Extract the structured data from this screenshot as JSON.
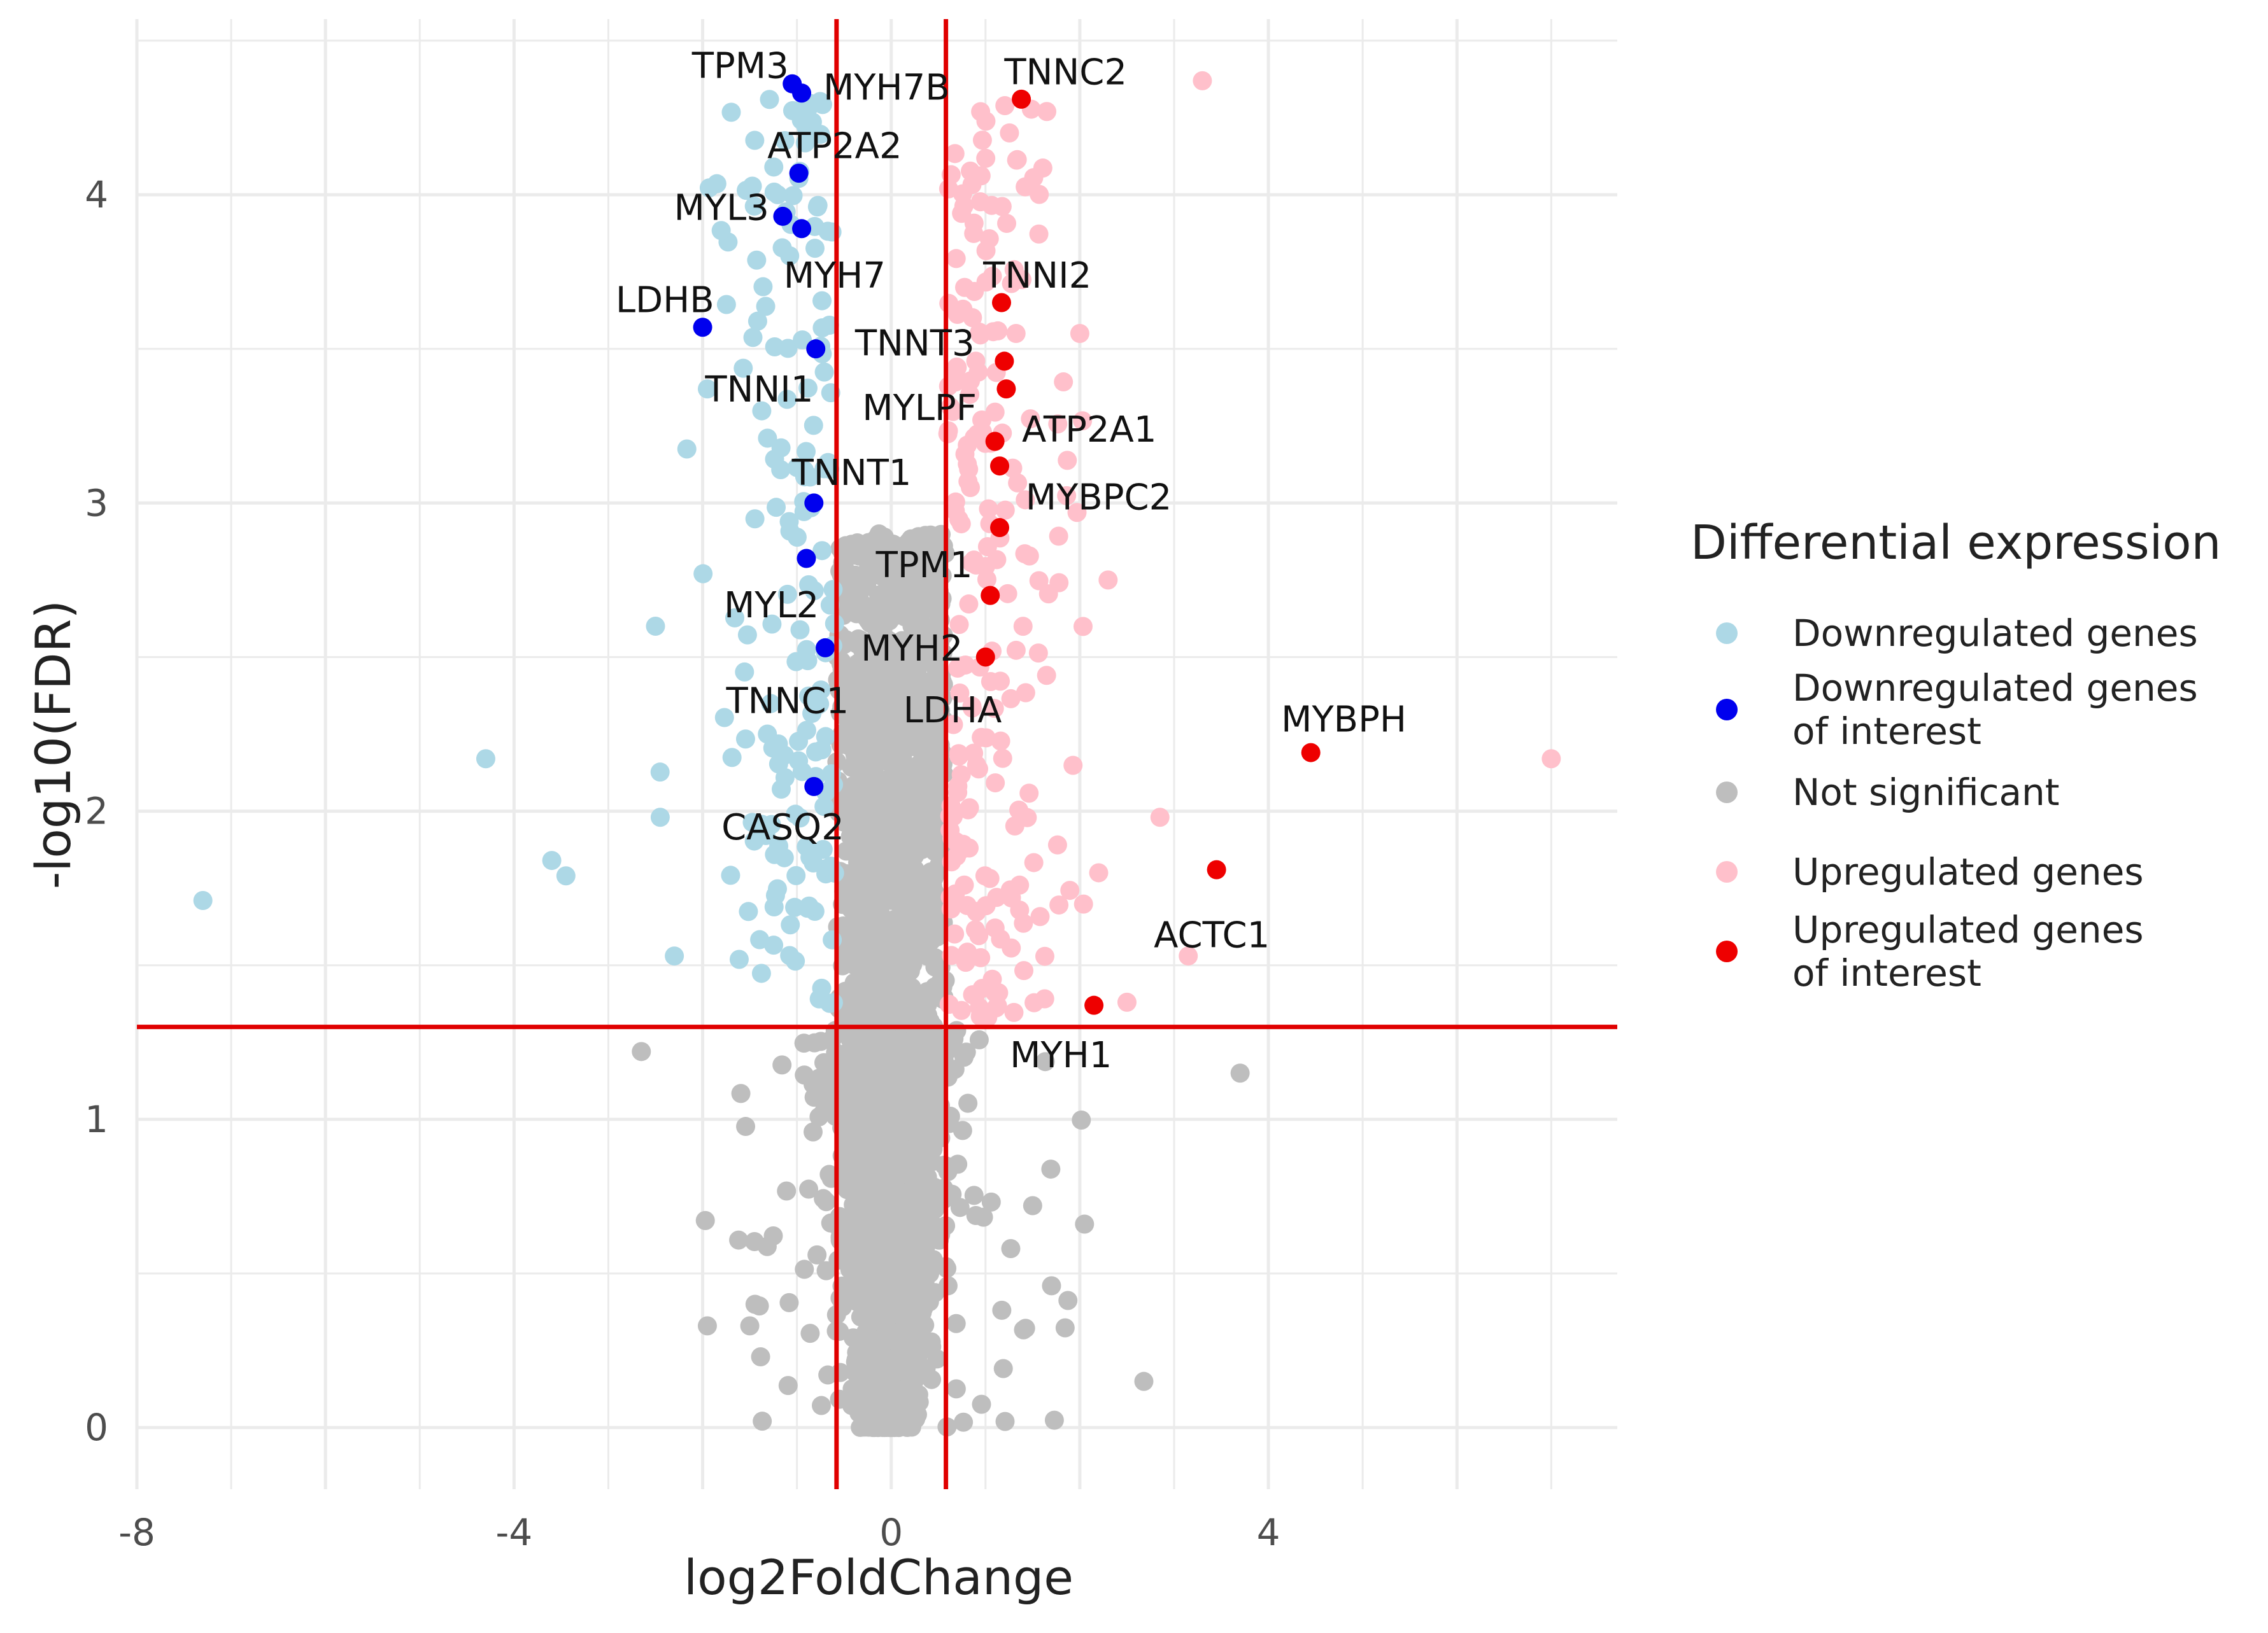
{
  "chart_data": {
    "type": "scatter",
    "title": "",
    "xlabel": "log2FoldChange",
    "ylabel": "-log10(FDR)",
    "xlim": [
      -8,
      7.7
    ],
    "ylim": [
      -0.2,
      4.57
    ],
    "xticks": [
      -8,
      -4,
      0,
      4
    ],
    "xtick_labels": [
      "-8",
      "-4",
      "0",
      "4"
    ],
    "yticks": [
      0,
      1,
      2,
      3,
      4
    ],
    "ytick_labels": [
      "0",
      "1",
      "2",
      "3",
      "4"
    ],
    "thresholds": {
      "log2fc": [
        -0.58,
        0.58
      ],
      "neg_log10_fdr": 1.3
    },
    "colors": {
      "down": "#add8e6",
      "down_interest": "#0000ee",
      "ns": "#bebebe",
      "up": "#ffc0cb",
      "up_interest": "#ee0000",
      "threshold": "#e00000",
      "grid": "#ebebeb"
    },
    "legend": {
      "title": "Differential expression",
      "position": "right",
      "entries": [
        {
          "key": "down",
          "lines": [
            "Downregulated genes"
          ]
        },
        {
          "key": "down_interest",
          "lines": [
            "Downregulated genes",
            "of interest"
          ]
        },
        {
          "key": "ns",
          "lines": [
            "Not significant"
          ]
        },
        {
          "key": "up",
          "lines": [
            "Upregulated genes"
          ]
        },
        {
          "key": "up_interest",
          "lines": [
            "Upregulated genes",
            "of interest"
          ]
        }
      ]
    },
    "series": [
      {
        "name": "Downregulated genes of interest",
        "color_key": "down_interest",
        "points": [
          {
            "x": -1.05,
            "y": 4.36,
            "label": "TPM3"
          },
          {
            "x": -0.95,
            "y": 4.33,
            "label": "MYH7B"
          },
          {
            "x": -0.98,
            "y": 4.07,
            "label": "ATP2A2"
          },
          {
            "x": -1.15,
            "y": 3.93,
            "label": ""
          },
          {
            "x": -0.95,
            "y": 3.89,
            "label": "MYL3"
          },
          {
            "x": -2.0,
            "y": 3.57,
            "label": "LDHB"
          },
          {
            "x": -0.8,
            "y": 3.5,
            "label": "MYH7"
          },
          {
            "x": -0.82,
            "y": 3.0,
            "label": "TNNI1"
          },
          {
            "x": -0.9,
            "y": 2.82,
            "label": "TNNT1"
          },
          {
            "x": -0.7,
            "y": 2.53,
            "label": "MYL2"
          },
          {
            "x": -0.82,
            "y": 2.08,
            "label": "TNNC1"
          }
        ]
      },
      {
        "name": "Upregulated genes of interest",
        "color_key": "up_interest",
        "points": [
          {
            "x": 1.38,
            "y": 4.31,
            "label": "TNNC2"
          },
          {
            "x": 1.17,
            "y": 3.65,
            "label": "TNNI2"
          },
          {
            "x": 1.2,
            "y": 3.46,
            "label": "TNNT3"
          },
          {
            "x": 1.22,
            "y": 3.37,
            "label": "MYLPF"
          },
          {
            "x": 1.1,
            "y": 3.2,
            "label": "ATP2A1"
          },
          {
            "x": 1.15,
            "y": 3.12,
            "label": "MYBPC2"
          },
          {
            "x": 1.15,
            "y": 2.92,
            "label": "TPM1"
          },
          {
            "x": 1.05,
            "y": 2.7,
            "label": "MYH2"
          },
          {
            "x": 1.0,
            "y": 2.5,
            "label": "LDHA"
          },
          {
            "x": 4.45,
            "y": 2.19,
            "label": "MYBPH"
          },
          {
            "x": 3.45,
            "y": 1.81,
            "label": "ACTC1"
          },
          {
            "x": 2.15,
            "y": 1.37,
            "label": "MYH1"
          }
        ]
      }
    ],
    "annotations": [
      {
        "text": "TPM3",
        "x": -1.6,
        "y": 4.42
      },
      {
        "text": "MYH7B",
        "x": -0.05,
        "y": 4.35
      },
      {
        "text": "TNNC2",
        "x": 1.85,
        "y": 4.4
      },
      {
        "text": "ATP2A2",
        "x": -0.6,
        "y": 4.16
      },
      {
        "text": "MYL3",
        "x": -1.8,
        "y": 3.96
      },
      {
        "text": "MYH7",
        "x": -0.6,
        "y": 3.74
      },
      {
        "text": "TNNI2",
        "x": 1.55,
        "y": 3.74
      },
      {
        "text": "LDHB",
        "x": -2.4,
        "y": 3.66
      },
      {
        "text": "TNNT3",
        "x": 0.25,
        "y": 3.52
      },
      {
        "text": "TNNI1",
        "x": -1.4,
        "y": 3.37
      },
      {
        "text": "MYLPF",
        "x": 0.3,
        "y": 3.31
      },
      {
        "text": "ATP2A1",
        "x": 2.1,
        "y": 3.24
      },
      {
        "text": "TNNT1",
        "x": -0.42,
        "y": 3.1
      },
      {
        "text": "MYBPC2",
        "x": 2.2,
        "y": 3.02
      },
      {
        "text": "TPM1",
        "x": 0.35,
        "y": 2.8
      },
      {
        "text": "MYL2",
        "x": -1.27,
        "y": 2.67
      },
      {
        "text": "MYH2",
        "x": 0.22,
        "y": 2.53
      },
      {
        "text": "TNNC1",
        "x": -1.1,
        "y": 2.36
      },
      {
        "text": "LDHA",
        "x": 0.65,
        "y": 2.33
      },
      {
        "text": "MYBPH",
        "x": 4.8,
        "y": 2.3
      },
      {
        "text": "CASQ2",
        "x": -1.15,
        "y": 1.95
      },
      {
        "text": "ACTC1",
        "x": 3.4,
        "y": 1.6
      },
      {
        "text": "MYH1",
        "x": 1.8,
        "y": 1.21
      }
    ]
  }
}
